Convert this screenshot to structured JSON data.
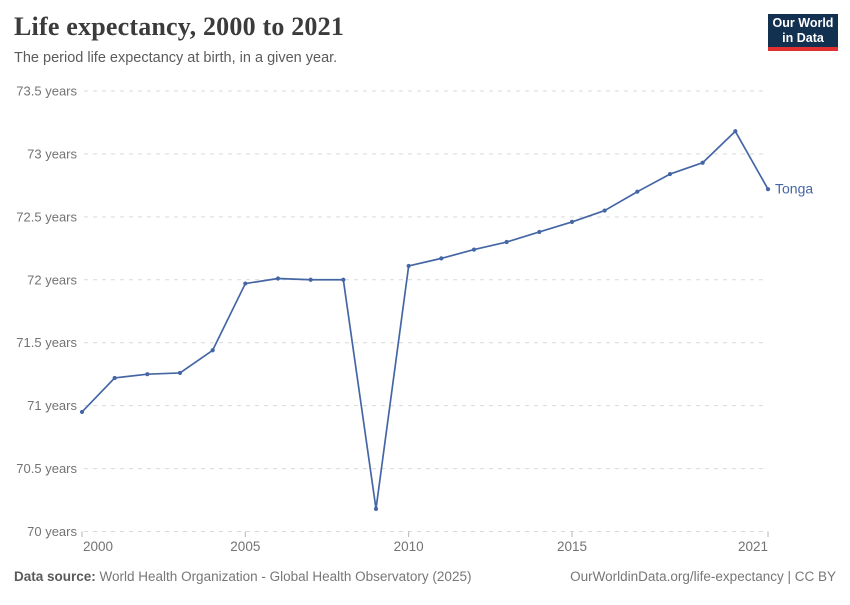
{
  "header": {
    "title": "Life expectancy, 2000 to 2021",
    "subtitle": "The period life expectancy at birth, in a given year."
  },
  "logo": {
    "line1": "Our World",
    "line2": "in Data",
    "bg_color": "#12304f",
    "accent_color": "#e03130"
  },
  "footer": {
    "source_label": "Data source:",
    "source_text": " World Health Organization - Global Health Observatory (2025)",
    "right_text": "OurWorldinData.org/life-expectancy | CC BY"
  },
  "chart_data": {
    "type": "line",
    "title": "Life expectancy, 2000 to 2021",
    "xlabel": "",
    "ylabel": "",
    "x": [
      2000,
      2001,
      2002,
      2003,
      2004,
      2005,
      2006,
      2007,
      2008,
      2009,
      2010,
      2011,
      2012,
      2013,
      2014,
      2015,
      2016,
      2017,
      2018,
      2019,
      2020,
      2021
    ],
    "series": [
      {
        "name": "Tonga",
        "color": "#4566a5",
        "values": [
          70.95,
          71.22,
          71.25,
          71.26,
          71.44,
          71.97,
          72.01,
          72.0,
          72.0,
          70.18,
          72.11,
          72.17,
          72.24,
          72.3,
          72.38,
          72.46,
          72.55,
          72.7,
          72.84,
          72.93,
          73.18,
          72.72
        ]
      }
    ],
    "xlim": [
      2000,
      2021
    ],
    "ylim": [
      70,
      73.5
    ],
    "ytick_step": 0.5,
    "ytick_suffix": " years",
    "xticks": [
      2000,
      2005,
      2010,
      2015,
      2021
    ],
    "grid": "horizontal-dashed",
    "grid_color": "#d9d9d9",
    "tick_color": "#b5b5b5",
    "axis_text_color": "#737373",
    "legend_position": "right-of-last-point",
    "markers": true
  }
}
